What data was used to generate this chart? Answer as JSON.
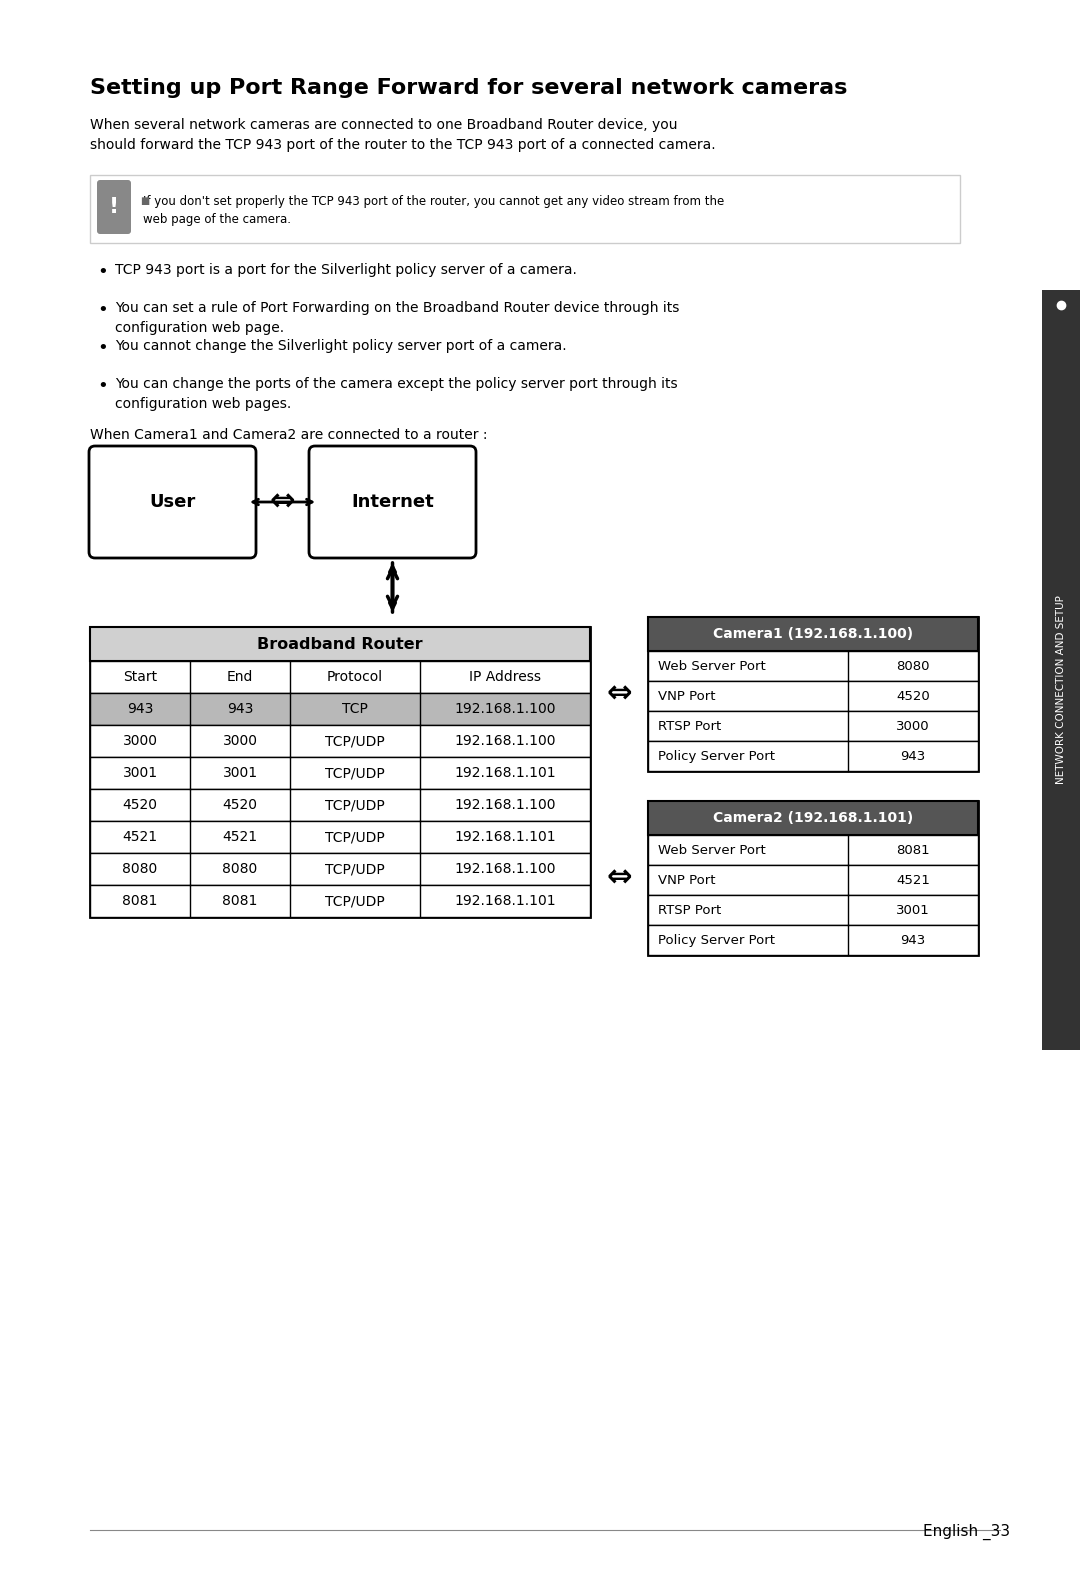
{
  "title": "Setting up Port Range Forward for several network cameras",
  "intro_text": "When several network cameras are connected to one Broadband Router device, you\nshould forward the TCP 943 port of the router to the TCP 943 port of a connected camera.",
  "warning_text": "If you don't set properly the TCP 943 port of the router, you cannot get any video stream from the\nweb page of the camera.",
  "bullets": [
    "TCP 943 port is a port for the Silverlight policy server of a camera.",
    "You can set a rule of Port Forwarding on the Broadband Router device through its\nconfiguration web page.",
    "You cannot change the Silverlight policy server port of a camera.",
    "You can change the ports of the camera except the policy server port through its\nconfiguration web pages."
  ],
  "when_text": "When Camera1 and Camera2 are connected to a router :",
  "user_label": "User",
  "internet_label": "Internet",
  "router_title": "Broadband Router",
  "router_headers": [
    "Start",
    "End",
    "Protocol",
    "IP Address"
  ],
  "router_rows": [
    [
      "943",
      "943",
      "TCP",
      "192.168.1.100"
    ],
    [
      "3000",
      "3000",
      "TCP/UDP",
      "192.168.1.100"
    ],
    [
      "3001",
      "3001",
      "TCP/UDP",
      "192.168.1.101"
    ],
    [
      "4520",
      "4520",
      "TCP/UDP",
      "192.168.1.100"
    ],
    [
      "4521",
      "4521",
      "TCP/UDP",
      "192.168.1.101"
    ],
    [
      "8080",
      "8080",
      "TCP/UDP",
      "192.168.1.100"
    ],
    [
      "8081",
      "8081",
      "TCP/UDP",
      "192.168.1.101"
    ]
  ],
  "highlighted_row": 0,
  "camera1_title": "Camera1 (192.168.1.100)",
  "camera1_rows": [
    [
      "Web Server Port",
      "8080"
    ],
    [
      "VNP Port",
      "4520"
    ],
    [
      "RTSP Port",
      "3000"
    ],
    [
      "Policy Server Port",
      "943"
    ]
  ],
  "camera2_title": "Camera2 (192.168.1.101)",
  "camera2_rows": [
    [
      "Web Server Port",
      "8081"
    ],
    [
      "VNP Port",
      "4521"
    ],
    [
      "RTSP Port",
      "3001"
    ],
    [
      "Policy Server Port",
      "943"
    ]
  ],
  "footer_text": "English _33",
  "sidebar_text": "NETWORK CONNECTION AND SETUP",
  "bg_color": "#ffffff",
  "header_bg": "#d0d0d0",
  "highlight_row_bg": "#b8b8b8",
  "camera_header_bg": "#555555",
  "camera_header_fg": "#ffffff",
  "border_color": "#000000",
  "text_color": "#000000",
  "warning_icon_bg": "#888888",
  "sidebar_bg": "#333333"
}
